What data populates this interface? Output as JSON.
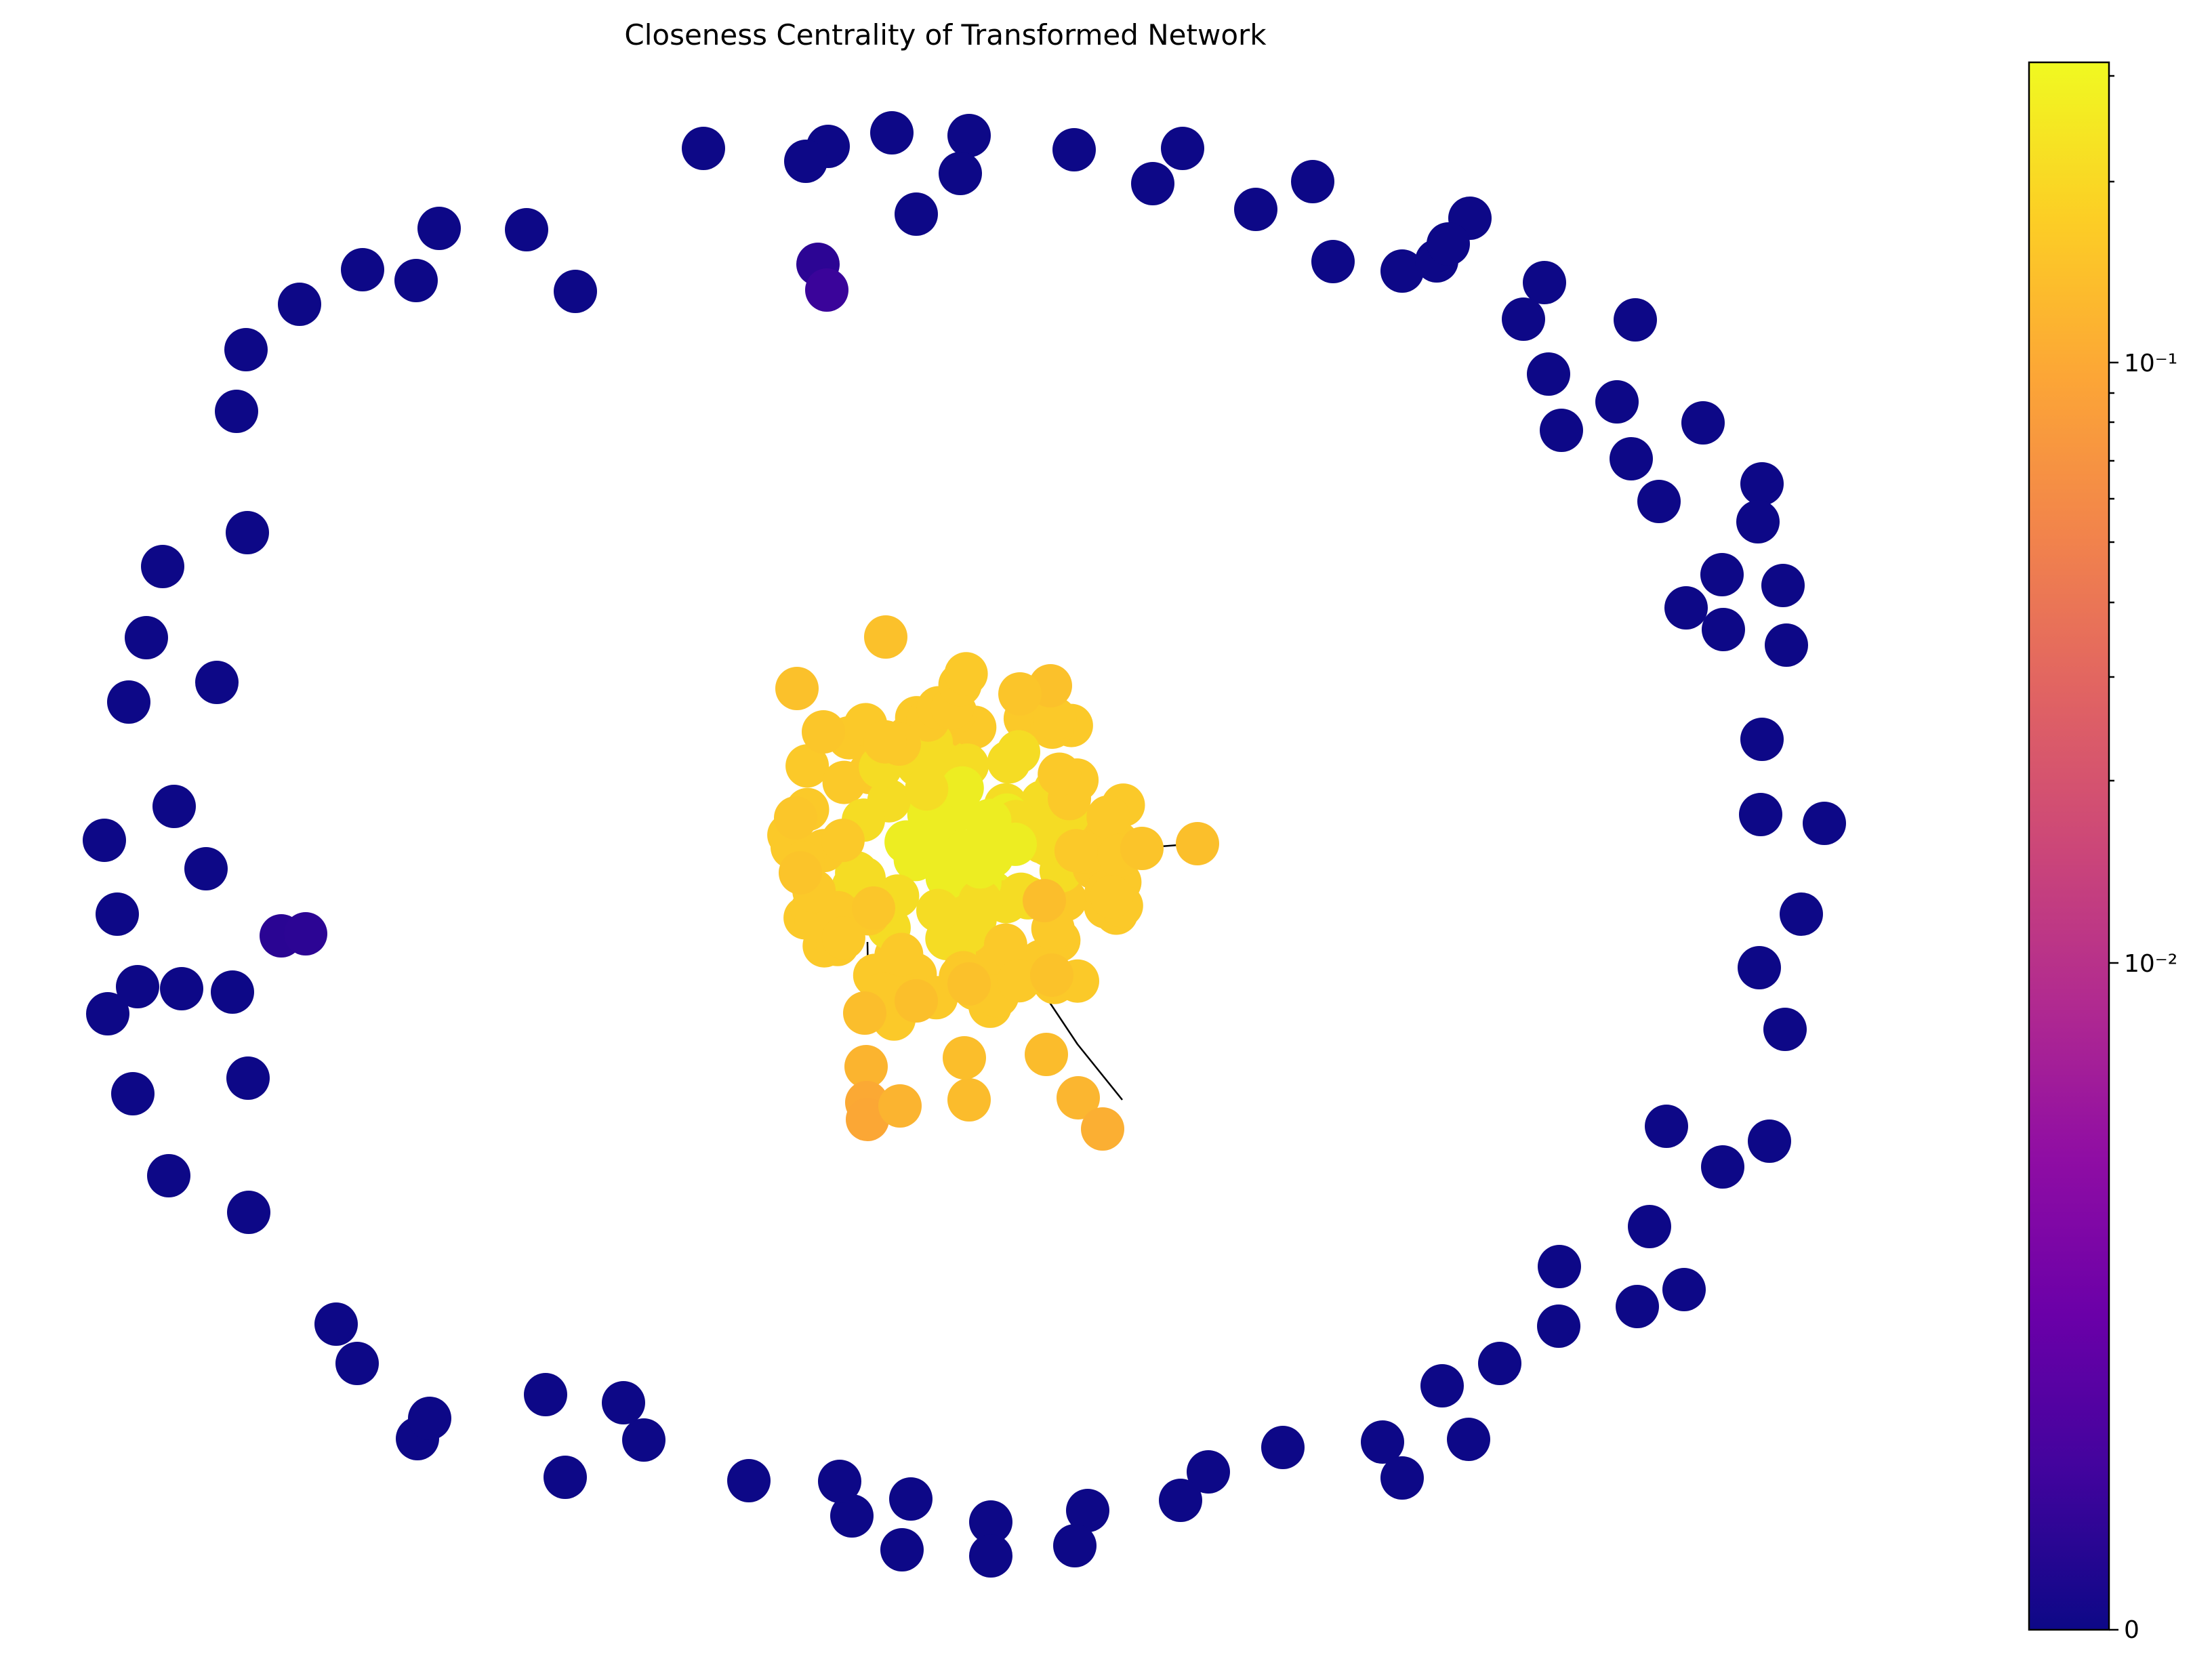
{
  "chart_data": {
    "type": "network",
    "title": "Closeness Centrality of Transformed Network",
    "colormap": "plasma",
    "colorbar": {
      "scale": "symlog",
      "tick_labels": [
        "0",
        "10⁻²",
        "10⁻¹"
      ],
      "tick_values": [
        0,
        0.01,
        0.1
      ],
      "range": [
        0,
        0.3
      ]
    },
    "components": [
      {
        "description_value": "main_cluster_closeness_range",
        "min": 0.09,
        "max": 0.25
      },
      {
        "description_value": "isolated_node_closeness",
        "value": 0
      },
      {
        "description_value": "pair_component_closeness",
        "value": 0.001
      }
    ]
  }
}
